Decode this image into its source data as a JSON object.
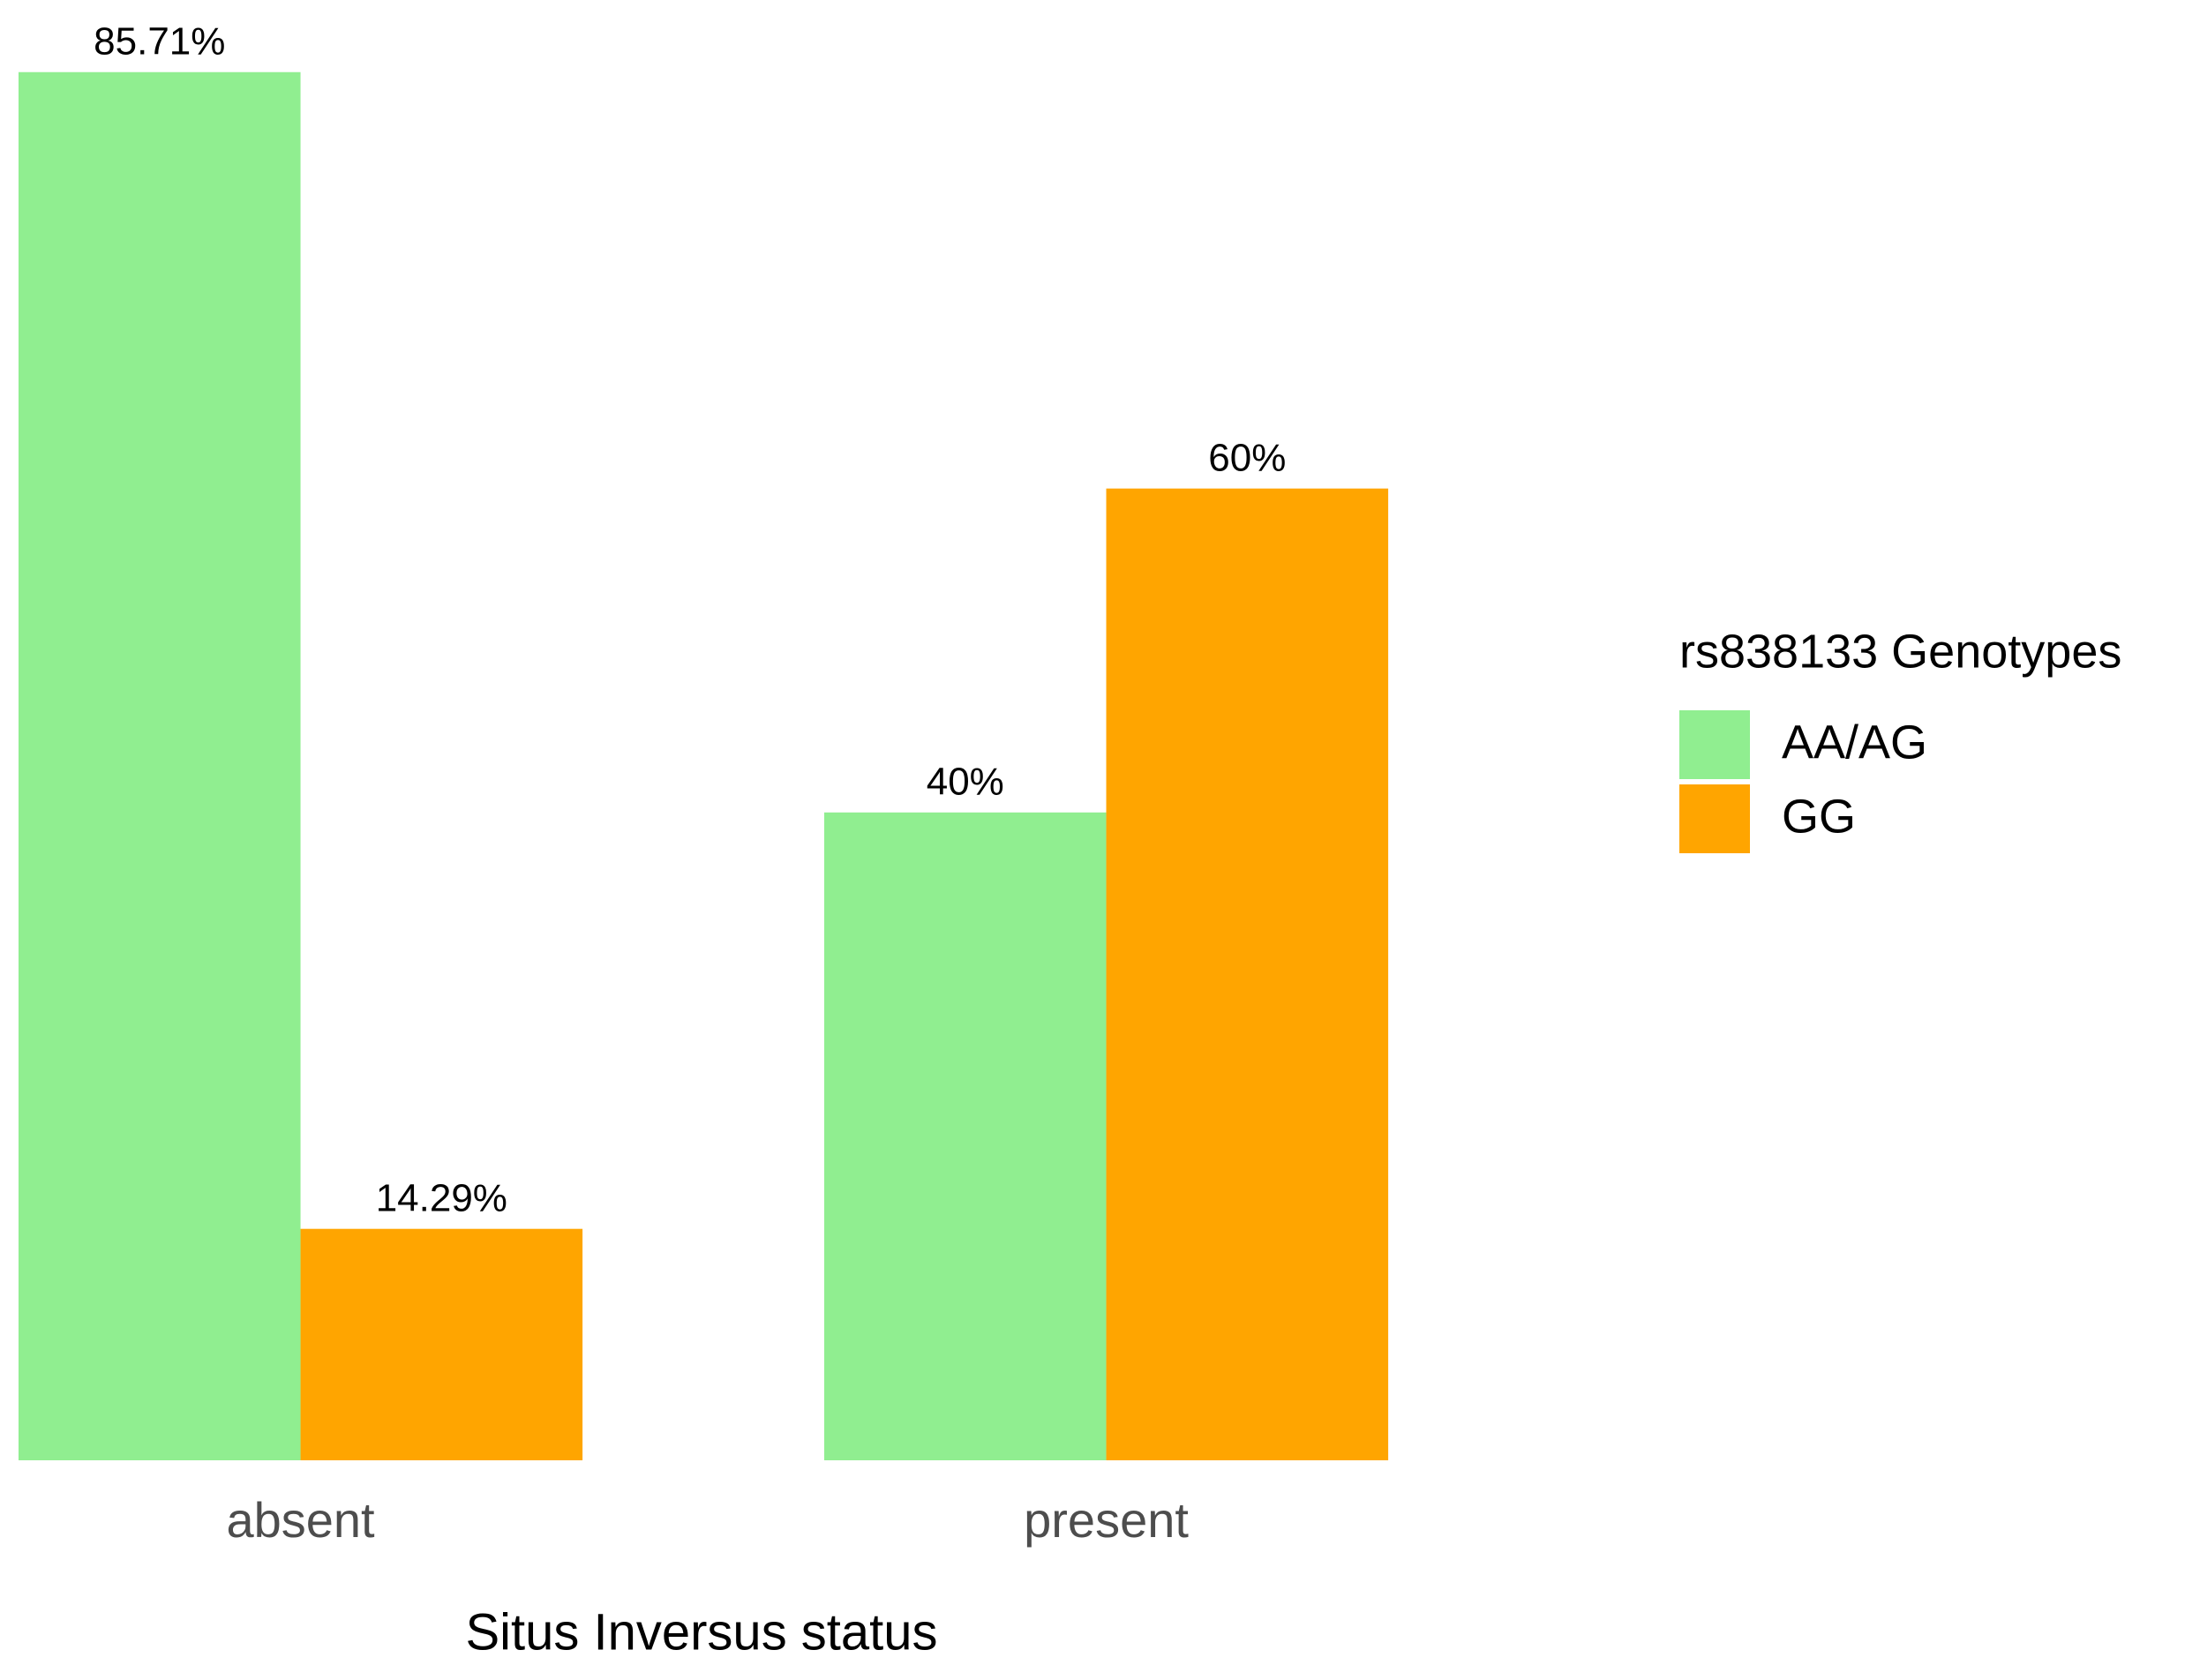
{
  "chart_data": {
    "type": "bar",
    "x_label": "Situs Inversus status",
    "categories": [
      "absent",
      "present"
    ],
    "series": [
      {
        "name": "AA/AG",
        "color": "#90ee90",
        "values": [
          85.71,
          40
        ],
        "value_labels": [
          "85.71%",
          "40%"
        ]
      },
      {
        "name": "GG",
        "color": "#ffa500",
        "values": [
          14.29,
          60
        ],
        "value_labels": [
          "14.29%",
          "60%"
        ]
      }
    ],
    "legend_title": "rs838133 Genotypes",
    "legend_position": "right",
    "ylim": [
      0,
      90
    ]
  }
}
